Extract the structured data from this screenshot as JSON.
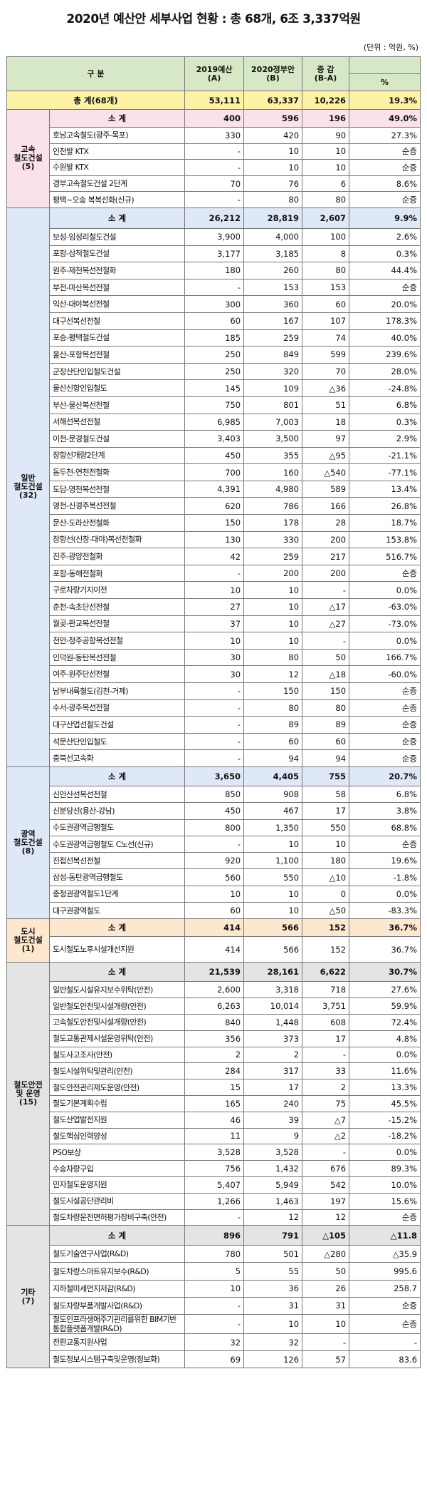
{
  "title": "2020년 예산안 세부사업 현황 : 총 68개, 6조 3,337억원",
  "unit": "(단위 : 억원, %)",
  "header": {
    "category": "구   분",
    "col_2019": "2019예산",
    "col_2019_sub": "(A)",
    "col_2020": "2020정부안",
    "col_2020_sub": "(B)",
    "col_change": "증  감",
    "col_change_sub": "(B-A)",
    "col_pct": "%"
  },
  "total": {
    "label": "총   계(68개)",
    "a": "53,111",
    "b": "63,337",
    "diff": "10,226",
    "pct": "19.3%"
  },
  "groups": [
    {
      "name": "고속\n철도건설\n(5)",
      "color": "pink",
      "subtotal": {
        "label": "소   계",
        "a": "400",
        "b": "596",
        "diff": "196",
        "pct": "49.0%"
      },
      "items": [
        {
          "name": "호남고속철도(광주-목포)",
          "a": "330",
          "b": "420",
          "diff": "90",
          "pct": "27.3%"
        },
        {
          "name": "인천발 KTX",
          "a": "-",
          "b": "10",
          "diff": "10",
          "pct": "순증"
        },
        {
          "name": "수원발 KTX",
          "a": "-",
          "b": "10",
          "diff": "10",
          "pct": "순증"
        },
        {
          "name": "경부고속철도건설 2단계",
          "a": "70",
          "b": "76",
          "diff": "6",
          "pct": "8.6%"
        },
        {
          "name": "평택~오송 복복선화(신규)",
          "a": "-",
          "b": "80",
          "diff": "80",
          "pct": "순증"
        }
      ]
    },
    {
      "name": "일반\n철도건설\n(32)",
      "color": "blue",
      "subtotal": {
        "label": "소   계",
        "a": "26,212",
        "b": "28,819",
        "diff": "2,607",
        "pct": "9.9%"
      },
      "items": [
        {
          "name": "보성-임성리철도건설",
          "a": "3,900",
          "b": "4,000",
          "diff": "100",
          "pct": "2.6%"
        },
        {
          "name": "포항-삼척철도건설",
          "a": "3,177",
          "b": "3,185",
          "diff": "8",
          "pct": "0.3%"
        },
        {
          "name": "원주-제천복선전철화",
          "a": "180",
          "b": "260",
          "diff": "80",
          "pct": "44.4%"
        },
        {
          "name": "부전-마산복선전철",
          "a": "-",
          "b": "153",
          "diff": "153",
          "pct": "순증"
        },
        {
          "name": "익산-대야복선전철",
          "a": "300",
          "b": "360",
          "diff": "60",
          "pct": "20.0%"
        },
        {
          "name": "대구선복선전철",
          "a": "60",
          "b": "167",
          "diff": "107",
          "pct": "178.3%"
        },
        {
          "name": "포승-평택철도건설",
          "a": "185",
          "b": "259",
          "diff": "74",
          "pct": "40.0%"
        },
        {
          "name": "울산-포항복선전철",
          "a": "250",
          "b": "849",
          "diff": "599",
          "pct": "239.6%"
        },
        {
          "name": "군장산단인입철도건설",
          "a": "250",
          "b": "320",
          "diff": "70",
          "pct": "28.0%"
        },
        {
          "name": "울산신항인입철도",
          "a": "145",
          "b": "109",
          "diff": "△36",
          "pct": "-24.8%"
        },
        {
          "name": "부산-울산복선전철",
          "a": "750",
          "b": "801",
          "diff": "51",
          "pct": "6.8%"
        },
        {
          "name": "서해선복선전철",
          "a": "6,985",
          "b": "7,003",
          "diff": "18",
          "pct": "0.3%"
        },
        {
          "name": "이천-문경철도건설",
          "a": "3,403",
          "b": "3,500",
          "diff": "97",
          "pct": "2.9%"
        },
        {
          "name": "장항선개량2단계",
          "a": "450",
          "b": "355",
          "diff": "△95",
          "pct": "-21.1%"
        },
        {
          "name": "동두천-연천전철화",
          "a": "700",
          "b": "160",
          "diff": "△540",
          "pct": "-77.1%"
        },
        {
          "name": "도담-영천복선전철",
          "a": "4,391",
          "b": "4,980",
          "diff": "589",
          "pct": "13.4%"
        },
        {
          "name": "영천-신경주복선전철",
          "a": "620",
          "b": "786",
          "diff": "166",
          "pct": "26.8%"
        },
        {
          "name": "문산-도라산전철화",
          "a": "150",
          "b": "178",
          "diff": "28",
          "pct": "18.7%"
        },
        {
          "name": "장항선(신창-대야)복선전철화",
          "a": "130",
          "b": "330",
          "diff": "200",
          "pct": "153.8%"
        },
        {
          "name": "진주-광양전철화",
          "a": "42",
          "b": "259",
          "diff": "217",
          "pct": "516.7%"
        },
        {
          "name": "포항-동해전철화",
          "a": "-",
          "b": "200",
          "diff": "200",
          "pct": "순증"
        },
        {
          "name": "구로차량기지이전",
          "a": "10",
          "b": "10",
          "diff": "-",
          "pct": "0.0%"
        },
        {
          "name": "춘천-속초단선전철",
          "a": "27",
          "b": "10",
          "diff": "△17",
          "pct": "-63.0%"
        },
        {
          "name": "월곶-판교복선전철",
          "a": "37",
          "b": "10",
          "diff": "△27",
          "pct": "-73.0%"
        },
        {
          "name": "천안-청주공항복선전철",
          "a": "10",
          "b": "10",
          "diff": "-",
          "pct": "0.0%"
        },
        {
          "name": "인덕원-동탄복선전철",
          "a": "30",
          "b": "80",
          "diff": "50",
          "pct": "166.7%"
        },
        {
          "name": "여주-원주단선전철",
          "a": "30",
          "b": "12",
          "diff": "△18",
          "pct": "-60.0%"
        },
        {
          "name": "남부내륙철도(김천-거제)",
          "a": "-",
          "b": "150",
          "diff": "150",
          "pct": "순증"
        },
        {
          "name": "수서-광주복선전철",
          "a": "-",
          "b": "80",
          "diff": "80",
          "pct": "순증"
        },
        {
          "name": "대구산업선철도건설",
          "a": "-",
          "b": "89",
          "diff": "89",
          "pct": "순증"
        },
        {
          "name": "석문산단인입철도",
          "a": "-",
          "b": "60",
          "diff": "60",
          "pct": "순증"
        },
        {
          "name": "충북선고속화",
          "a": "-",
          "b": "94",
          "diff": "94",
          "pct": "순증"
        }
      ]
    },
    {
      "name": "광역\n철도건설\n(8)",
      "color": "blue",
      "subtotal": {
        "label": "소   계",
        "a": "3,650",
        "b": "4,405",
        "diff": "755",
        "pct": "20.7%"
      },
      "items": [
        {
          "name": "신안산선복선전철",
          "a": "850",
          "b": "908",
          "diff": "58",
          "pct": "6.8%"
        },
        {
          "name": "신분당선(용산-강남)",
          "a": "450",
          "b": "467",
          "diff": "17",
          "pct": "3.8%"
        },
        {
          "name": "수도권광역급행철도",
          "a": "800",
          "b": "1,350",
          "diff": "550",
          "pct": "68.8%"
        },
        {
          "name": "수도권광역급행철도 C노선(신규)",
          "a": "-",
          "b": "10",
          "diff": "10",
          "pct": "순증"
        },
        {
          "name": "진접선복선전철",
          "a": "920",
          "b": "1,100",
          "diff": "180",
          "pct": "19.6%"
        },
        {
          "name": "삼성-동탄광역급행철도",
          "a": "560",
          "b": "550",
          "diff": "△10",
          "pct": "-1.8%"
        },
        {
          "name": "충청권광역철도1단계",
          "a": "10",
          "b": "10",
          "diff": "0",
          "pct": "0.0%"
        },
        {
          "name": "대구권광역철도",
          "a": "60",
          "b": "10",
          "diff": "△50",
          "pct": "-83.3%"
        }
      ]
    },
    {
      "name": "도시\n철도건설(1)",
      "color": "orange",
      "subtotal": {
        "label": "소   계",
        "a": "414",
        "b": "566",
        "diff": "152",
        "pct": "36.7%"
      },
      "items": [
        {
          "name": "도시철도노후시설개선지원",
          "a": "414",
          "b": "566",
          "diff": "152",
          "pct": "36.7%"
        }
      ]
    },
    {
      "name": "철도안전\n및 운영\n(15)",
      "color": "gray",
      "subtotal": {
        "label": "소   계",
        "a": "21,539",
        "b": "28,161",
        "diff": "6,622",
        "pct": "30.7%"
      },
      "items": [
        {
          "name": "일반철도시설유지보수위탁(안전)",
          "a": "2,600",
          "b": "3,318",
          "diff": "718",
          "pct": "27.6%"
        },
        {
          "name": "일반철도안전및시설개량(안전)",
          "a": "6,263",
          "b": "10,014",
          "diff": "3,751",
          "pct": "59.9%"
        },
        {
          "name": "고속철도안전및시설개량(안전)",
          "a": "840",
          "b": "1,448",
          "diff": "608",
          "pct": "72.4%"
        },
        {
          "name": "철도교통관제시설운영위탁(안전)",
          "a": "356",
          "b": "373",
          "diff": "17",
          "pct": "4.8%"
        },
        {
          "name": "철도사고조사(안전)",
          "a": "2",
          "b": "2",
          "diff": "-",
          "pct": "0.0%"
        },
        {
          "name": "철도시설위탁및관리(안전)",
          "a": "284",
          "b": "317",
          "diff": "33",
          "pct": "11.6%"
        },
        {
          "name": "철도안전관리제도운영(안전)",
          "a": "15",
          "b": "17",
          "diff": "2",
          "pct": "13.3%"
        },
        {
          "name": "철도기본계획수립",
          "a": "165",
          "b": "240",
          "diff": "75",
          "pct": "45.5%"
        },
        {
          "name": "철도산업발전지원",
          "a": "46",
          "b": "39",
          "diff": "△7",
          "pct": "-15.2%"
        },
        {
          "name": "철도핵심인력양성",
          "a": "11",
          "b": "9",
          "diff": "△2",
          "pct": "-18.2%"
        },
        {
          "name": "PSO보상",
          "a": "3,528",
          "b": "3,528",
          "diff": "-",
          "pct": "0.0%"
        },
        {
          "name": "수송차량구입",
          "a": "756",
          "b": "1,432",
          "diff": "676",
          "pct": "89.3%"
        },
        {
          "name": "민자철도운영지원",
          "a": "5,407",
          "b": "5,949",
          "diff": "542",
          "pct": "10.0%"
        },
        {
          "name": "철도시설공단관리비",
          "a": "1,266",
          "b": "1,463",
          "diff": "197",
          "pct": "15.6%"
        },
        {
          "name": "철도차량운전면허평가장비구축(안전)",
          "a": "-",
          "b": "12",
          "diff": "12",
          "pct": "순증"
        }
      ]
    },
    {
      "name": "기타\n(7)",
      "color": "gray",
      "subtotal": {
        "label": "소   계",
        "a": "896",
        "b": "791",
        "diff": "△105",
        "pct": "△11.8"
      },
      "items": [
        {
          "name": "철도기술연구사업(R&D)",
          "a": "780",
          "b": "501",
          "diff": "△280",
          "pct": "△35.9"
        },
        {
          "name": "철도차량스마트유지보수(R&D)",
          "a": "5",
          "b": "55",
          "diff": "50",
          "pct": "995.6"
        },
        {
          "name": "지하철미세먼지저감(R&D)",
          "a": "10",
          "b": "36",
          "diff": "26",
          "pct": "258.7"
        },
        {
          "name": "철도차량부품개발사업(R&D)",
          "a": "-",
          "b": "31",
          "diff": "31",
          "pct": "순증"
        },
        {
          "name": "철도인프라생애주기관리를위한 BIM기반통합플랫폼개발(R&D)",
          "a": "-",
          "b": "10",
          "diff": "10",
          "pct": "순증"
        },
        {
          "name": "전환교통지원사업",
          "a": "32",
          "b": "32",
          "diff": "-",
          "pct": "-"
        },
        {
          "name": "철도정보시스템구축및운영(정보화)",
          "a": "69",
          "b": "126",
          "diff": "57",
          "pct": "83.6"
        }
      ]
    }
  ]
}
